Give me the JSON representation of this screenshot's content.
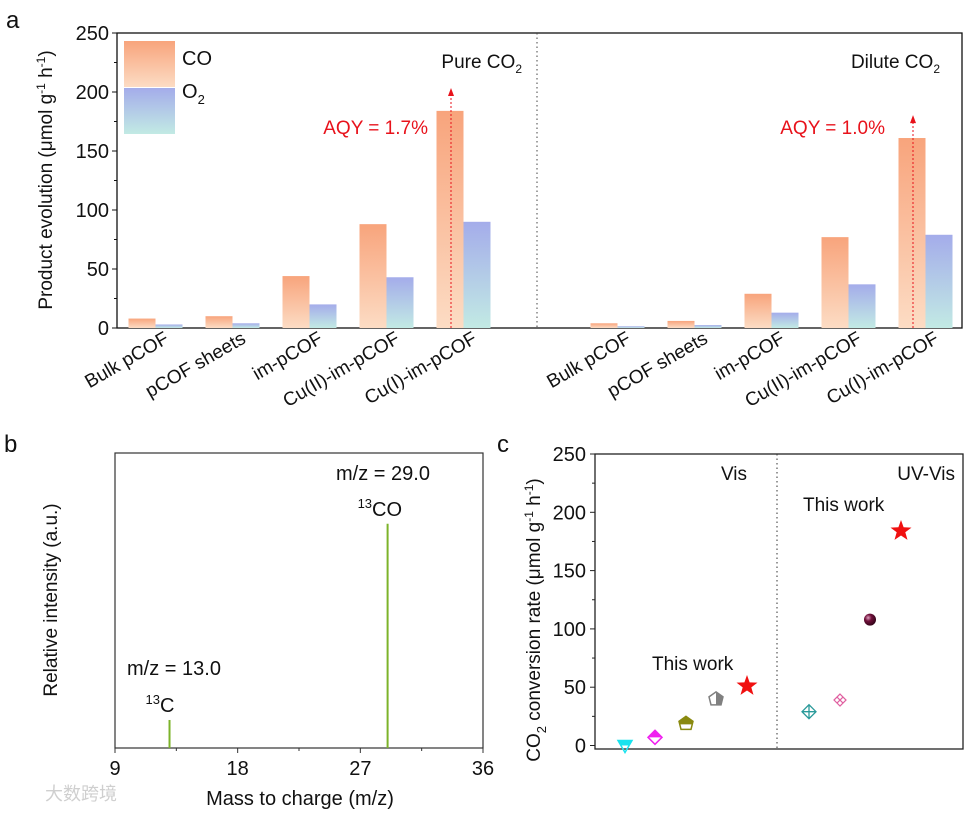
{
  "chart_data": [
    {
      "panel": "a",
      "type": "bar",
      "ylabel": "Product evolution (μmol g⁻¹ h⁻¹)",
      "ylim": [
        0,
        250
      ],
      "yticks": [
        0,
        50,
        100,
        150,
        200,
        250
      ],
      "legend": {
        "placement": "top-left",
        "entries": [
          "CO",
          "O2"
        ]
      },
      "groups": [
        {
          "name": "Pure CO2",
          "label": "Pure CO",
          "sub": "2",
          "annotation": "AQY = 1.7%",
          "categories": [
            "Bulk pCOF",
            "pCOF sheets",
            "im-pCOF",
            "Cu(II)-im-pCOF",
            "Cu(I)-im-pCOF"
          ],
          "series": [
            {
              "name": "CO",
              "values": [
                8,
                10,
                44,
                88,
                184
              ]
            },
            {
              "name": "O2",
              "values": [
                3,
                4,
                20,
                43,
                90
              ]
            }
          ]
        },
        {
          "name": "Dilute CO2",
          "label": "Dilute CO",
          "sub": "2",
          "annotation": "AQY = 1.0%",
          "categories": [
            "Bulk pCOF",
            "pCOF sheets",
            "im-pCOF",
            "Cu(II)-im-pCOF",
            "Cu(I)-im-pCOF"
          ],
          "series": [
            {
              "name": "CO",
              "values": [
                4,
                6,
                29,
                77,
                161
              ]
            },
            {
              "name": "O2",
              "values": [
                1.5,
                2.5,
                13,
                37,
                79
              ]
            }
          ]
        }
      ]
    },
    {
      "panel": "b",
      "type": "line",
      "xlabel": "Mass to charge (m/z)",
      "ylabel": "Relative intensity (a.u.)",
      "xlim": [
        9,
        36
      ],
      "xticks": [
        9,
        18,
        27,
        36
      ],
      "peaks": [
        {
          "x": 13.0,
          "y": 0.095,
          "label": "m/z = 13.0",
          "species_sup": "13",
          "species": "C"
        },
        {
          "x": 29.0,
          "y": 0.76,
          "label": "m/z = 29.0",
          "species_sup": "13",
          "species": "CO"
        }
      ],
      "color": "#7cb32a"
    },
    {
      "panel": "c",
      "type": "scatter",
      "ylabel": "CO2 conversion rate (μmol g⁻¹ h⁻¹)",
      "ylim": [
        -3,
        250
      ],
      "yticks": [
        0,
        50,
        100,
        150,
        200,
        250
      ],
      "regions": [
        "Vis",
        "UV-Vis"
      ],
      "annotation": "This work",
      "points": [
        {
          "region": "Vis",
          "y": 0,
          "marker": "triangle-down",
          "color": "#19e3ee"
        },
        {
          "region": "Vis",
          "y": 7,
          "marker": "diamond",
          "color": "#f020f0"
        },
        {
          "region": "Vis",
          "y": 19,
          "marker": "pentagon",
          "color": "#8a8a10"
        },
        {
          "region": "Vis",
          "y": 40,
          "marker": "pentagon-half",
          "color": "#808080"
        },
        {
          "region": "Vis",
          "y": 51,
          "marker": "star",
          "color": "#f01010",
          "this_work": true
        },
        {
          "region": "UV-Vis",
          "y": 29,
          "marker": "diamond-cross",
          "color": "#2a9a9a"
        },
        {
          "region": "UV-Vis",
          "y": 39,
          "marker": "hatched-diamond",
          "color": "#e060a0"
        },
        {
          "region": "UV-Vis",
          "y": 108,
          "marker": "sphere",
          "color": "#70103a"
        },
        {
          "region": "UV-Vis",
          "y": 184,
          "marker": "star",
          "color": "#f01010",
          "this_work": true
        }
      ]
    }
  ],
  "panel_labels": [
    "a",
    "b",
    "c"
  ],
  "watermark": "大数跨境"
}
